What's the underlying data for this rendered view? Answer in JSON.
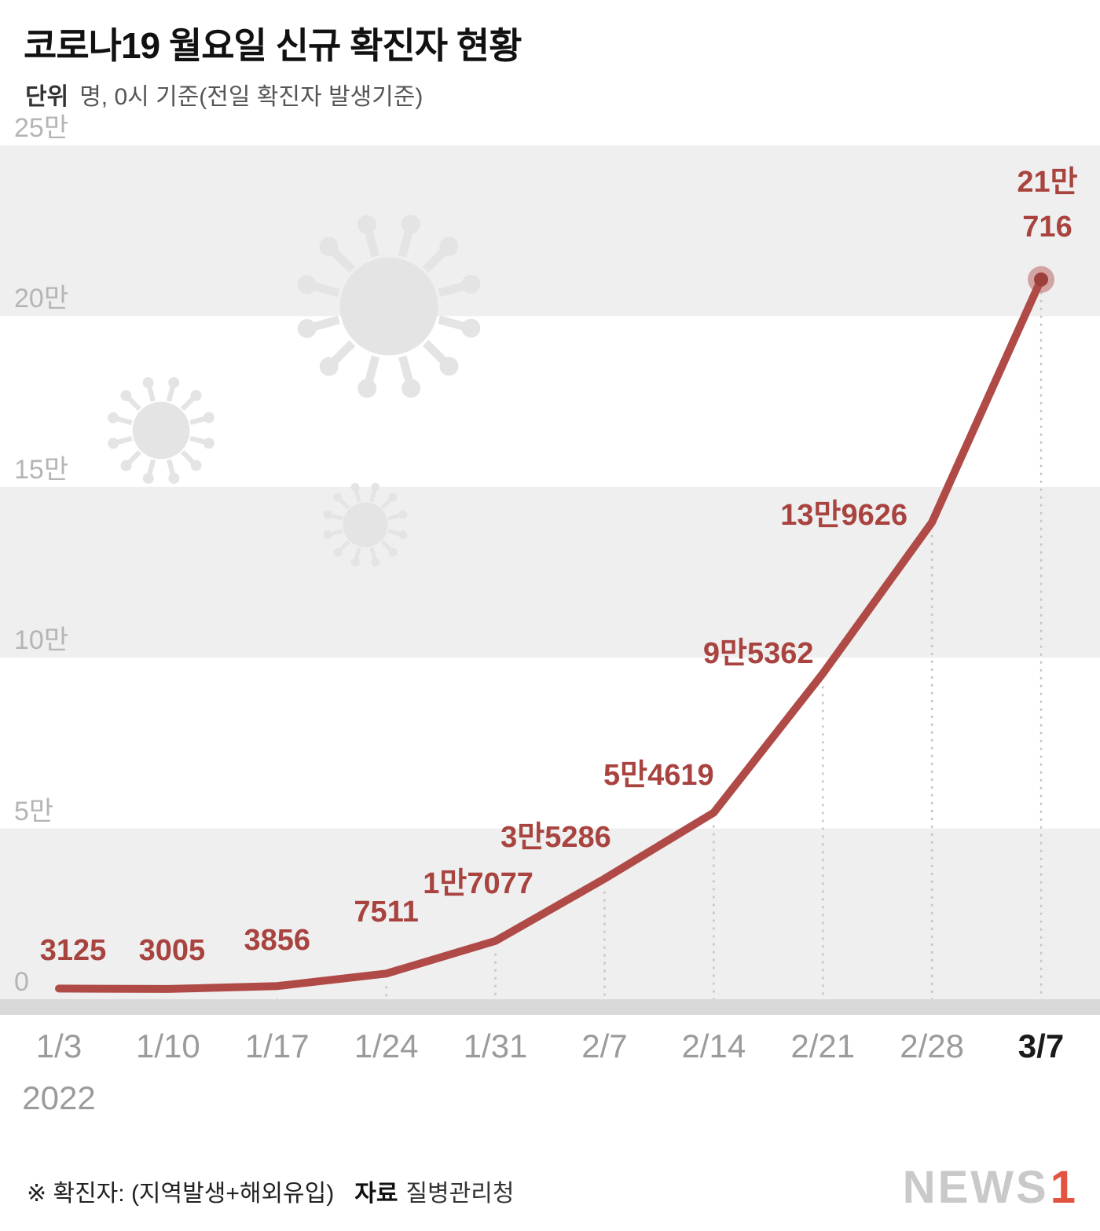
{
  "header": {
    "title": "코로나19 월요일 신규 확진자 현황",
    "unit_label": "단위",
    "unit_text": "명, 0시 기준(전일 확진자 발생기준)"
  },
  "chart_data": {
    "type": "line",
    "title": "코로나19 월요일 신규 확진자 현황",
    "unit": "명, 0시 기준(전일 확진자 발생기준)",
    "categories": [
      "1/3",
      "1/10",
      "1/17",
      "1/24",
      "1/31",
      "2/7",
      "2/14",
      "2/21",
      "2/28",
      "3/7"
    ],
    "year_label": "2022",
    "values": [
      3125,
      3005,
      3856,
      7511,
      17077,
      35286,
      54619,
      95362,
      139626,
      210716
    ],
    "point_labels": [
      "3125",
      "3005",
      "3856",
      "7511",
      "1만7077",
      "3만5286",
      "5만4619",
      "9만5362",
      "13만9626",
      "21만\n716"
    ],
    "ylim": [
      0,
      250000
    ],
    "y_tick_values": [
      250000,
      200000,
      150000,
      100000,
      50000,
      0
    ],
    "y_tick_labels": [
      "25만",
      "20만",
      "15만",
      "10만",
      "5만",
      "0"
    ],
    "line_color": "#b04a46",
    "point_label_color": "#a8433f",
    "band_color": "#efefef",
    "axis_strip_color": "#d9d9d9",
    "legend_position": "none",
    "grid": "alternating horizontal bands, dotted vertical guides at each date"
  },
  "footer": {
    "note": "※ 확진자: (지역발생+해외유입)",
    "source_label": "자료",
    "source_value": "질병관리청",
    "logo_news": "NEWS",
    "logo_one": "1"
  }
}
